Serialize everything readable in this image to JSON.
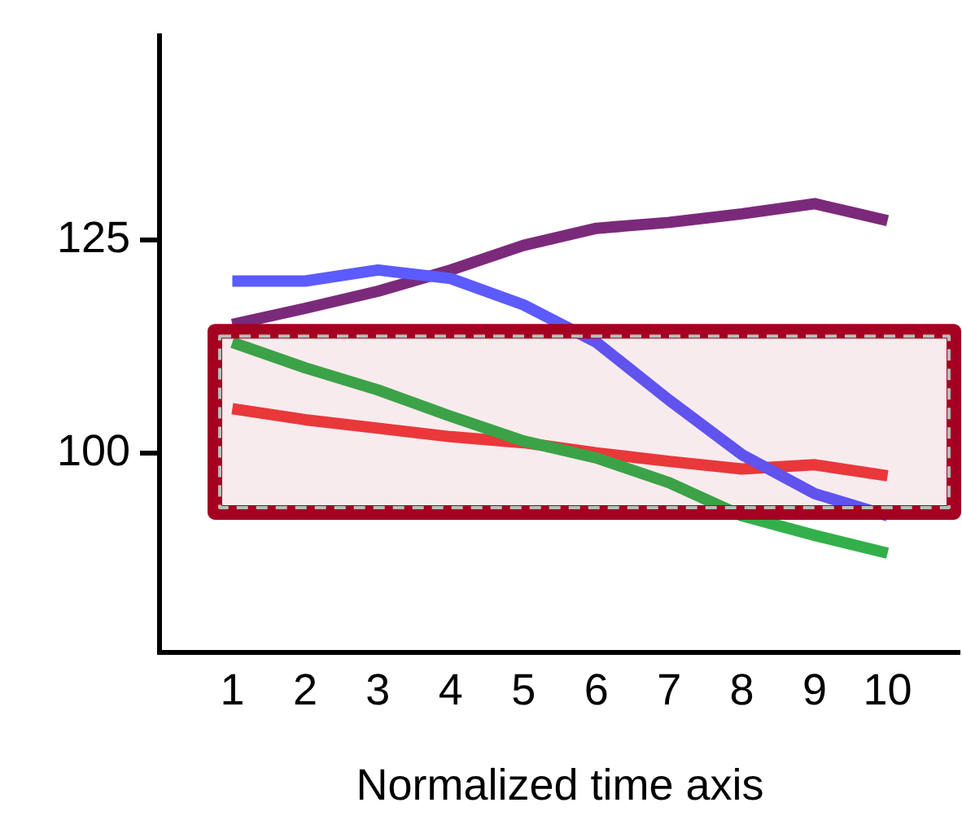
{
  "chart_data": {
    "type": "line",
    "xlabel": "Normalized time axis",
    "x": [
      1,
      2,
      3,
      4,
      5,
      6,
      7,
      8,
      9,
      10
    ],
    "xlim": [
      0,
      11
    ],
    "xticks": [
      1,
      2,
      3,
      4,
      5,
      6,
      7,
      8,
      9,
      10
    ],
    "ylim": [
      76.5,
      149
    ],
    "yticks": [
      100,
      125
    ],
    "grid": false,
    "legend": false,
    "marker": "none",
    "series": [
      {
        "color": "#5b5bff",
        "values": [
          120.2,
          120.2,
          121.5,
          120.5,
          117.4,
          113,
          106.2,
          99.8,
          95.2,
          92.6
        ]
      },
      {
        "color": "#7b2a7b",
        "values": [
          115.1,
          117,
          119,
          121.5,
          124.4,
          126.4,
          127.1,
          128.1,
          129.3,
          127.3
        ]
      },
      {
        "color": "#33b04a",
        "values": [
          113,
          110,
          107.4,
          104.3,
          101.4,
          99.4,
          96.5,
          92.6,
          90.3,
          88.2
        ]
      },
      {
        "color": "#f03c3c",
        "values": [
          105.2,
          103.9,
          102.9,
          101.9,
          101.2,
          100,
          99,
          98.1,
          98.6,
          97.3
        ]
      }
    ],
    "bands": [
      {
        "axis": "y",
        "from": 93,
        "to": 114.3,
        "color": "#a50021"
      }
    ]
  }
}
